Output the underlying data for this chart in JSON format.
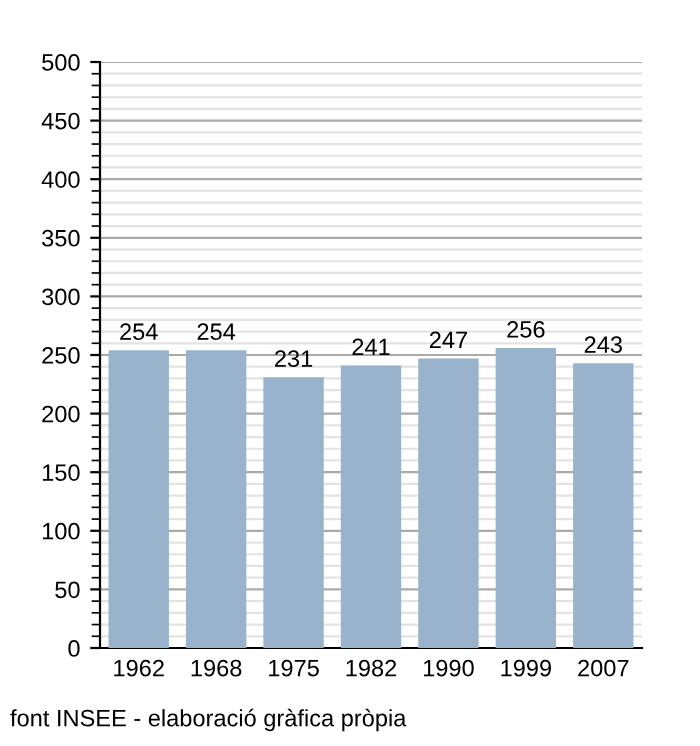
{
  "chart_data": {
    "type": "bar",
    "categories": [
      "1962",
      "1968",
      "1975",
      "1982",
      "1990",
      "1999",
      "2007"
    ],
    "values": [
      254,
      254,
      231,
      241,
      247,
      256,
      243
    ],
    "color": "#99b3cc",
    "ylim": [
      0,
      500
    ],
    "yticks": [
      0,
      50,
      100,
      150,
      200,
      250,
      300,
      350,
      400,
      450,
      500
    ],
    "grid": "y",
    "data_labels": true,
    "legend": false,
    "annotations": [
      "font INSEE - elaboració gràfica pròpia"
    ]
  }
}
